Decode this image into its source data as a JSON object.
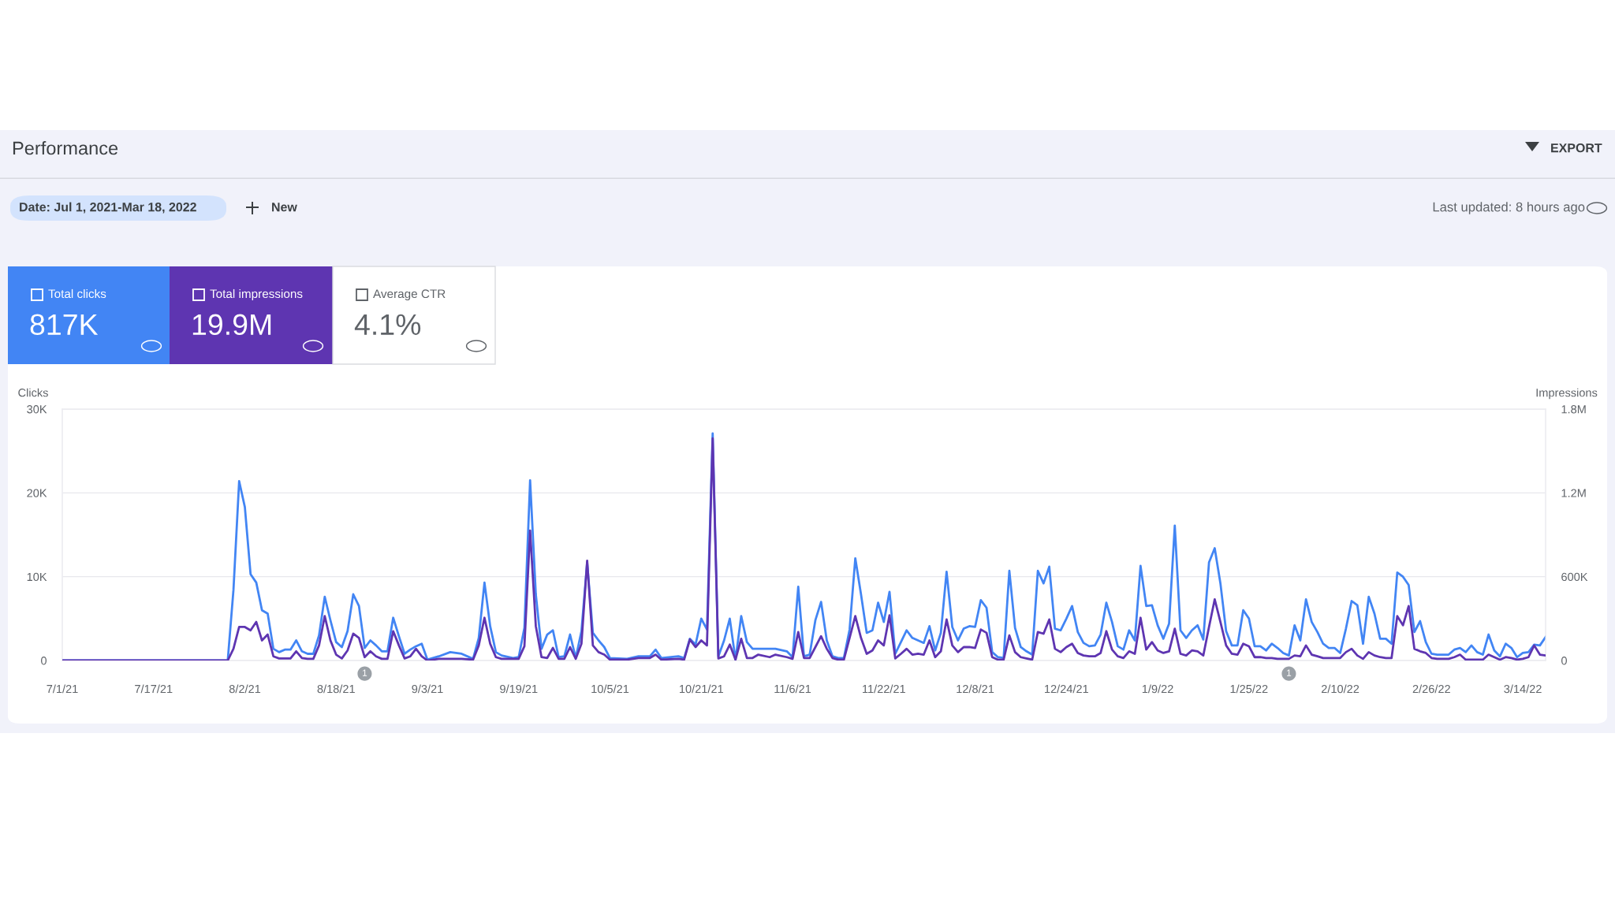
{
  "chart_data": {
    "type": "line",
    "title": "Performance",
    "ylabel": "Clicks",
    "y2label": "Impressions",
    "x": [
      "2021-07-01",
      "2021-07-15",
      "2021-07-30",
      "2021-07-31",
      "2021-08-01",
      "2021-08-02",
      "2021-08-03",
      "2021-08-04",
      "2021-08-05",
      "2021-08-06",
      "2021-08-07",
      "2021-08-08",
      "2021-08-09",
      "2021-08-10",
      "2021-08-11",
      "2021-08-12",
      "2021-08-13",
      "2021-08-14",
      "2021-08-15",
      "2021-08-16",
      "2021-08-17",
      "2021-08-18",
      "2021-08-19",
      "2021-08-20",
      "2021-08-21",
      "2021-08-22",
      "2021-08-23",
      "2021-08-24",
      "2021-08-25",
      "2021-08-26",
      "2021-08-27",
      "2021-08-28",
      "2021-08-29",
      "2021-08-30",
      "2021-08-31",
      "2021-09-01",
      "2021-09-02",
      "2021-09-03",
      "2021-09-05",
      "2021-09-07",
      "2021-09-09",
      "2021-09-11",
      "2021-09-12",
      "2021-09-13",
      "2021-09-14",
      "2021-09-15",
      "2021-09-16",
      "2021-09-18",
      "2021-09-19",
      "2021-09-20",
      "2021-09-21",
      "2021-09-22",
      "2021-09-23",
      "2021-09-24",
      "2021-09-25",
      "2021-09-26",
      "2021-09-27",
      "2021-09-28",
      "2021-09-29",
      "2021-09-30",
      "2021-10-01",
      "2021-10-02",
      "2021-10-03",
      "2021-10-04",
      "2021-10-05",
      "2021-10-08",
      "2021-10-10",
      "2021-10-12",
      "2021-10-13",
      "2021-10-14",
      "2021-10-17",
      "2021-10-18",
      "2021-10-19",
      "2021-10-20",
      "2021-10-21",
      "2021-10-22",
      "2021-10-23",
      "2021-10-24",
      "2021-10-25",
      "2021-10-26",
      "2021-10-27",
      "2021-10-28",
      "2021-10-29",
      "2021-10-30",
      "2021-10-31",
      "2021-11-02",
      "2021-11-03",
      "2021-11-05",
      "2021-11-06",
      "2021-11-07",
      "2021-11-08",
      "2021-11-09",
      "2021-11-10",
      "2021-11-11",
      "2021-11-12",
      "2021-11-13",
      "2021-11-14",
      "2021-11-15",
      "2021-11-16",
      "2021-11-17",
      "2021-11-18",
      "2021-11-19",
      "2021-11-20",
      "2021-11-21",
      "2021-11-22",
      "2021-11-23",
      "2021-11-24",
      "2021-11-25",
      "2021-11-26",
      "2021-11-27",
      "2021-11-28",
      "2021-11-29",
      "2021-11-30",
      "2021-12-01",
      "2021-12-02",
      "2021-12-03",
      "2021-12-04",
      "2021-12-05",
      "2021-12-06",
      "2021-12-07",
      "2021-12-08",
      "2021-12-09",
      "2021-12-10",
      "2021-12-11",
      "2021-12-12",
      "2021-12-13",
      "2021-12-14",
      "2021-12-15",
      "2021-12-16",
      "2021-12-17",
      "2021-12-18",
      "2021-12-19",
      "2021-12-20",
      "2021-12-21",
      "2021-12-22",
      "2021-12-23",
      "2021-12-24",
      "2021-12-25",
      "2021-12-26",
      "2021-12-27",
      "2021-12-28",
      "2021-12-29",
      "2021-12-30",
      "2021-12-31",
      "2022-01-01",
      "2022-01-02",
      "2022-01-03",
      "2022-01-04",
      "2022-01-05",
      "2022-01-06",
      "2022-01-07",
      "2022-01-08",
      "2022-01-09",
      "2022-01-10",
      "2022-01-11",
      "2022-01-12",
      "2022-01-13",
      "2022-01-14",
      "2022-01-15",
      "2022-01-16",
      "2022-01-17",
      "2022-01-18",
      "2022-01-19",
      "2022-01-20",
      "2022-01-21",
      "2022-01-22",
      "2022-01-23",
      "2022-01-24",
      "2022-01-25",
      "2022-01-26",
      "2022-01-27",
      "2022-01-28",
      "2022-01-29",
      "2022-01-30",
      "2022-01-31",
      "2022-02-01",
      "2022-02-02",
      "2022-02-03",
      "2022-02-04",
      "2022-02-05",
      "2022-02-06",
      "2022-02-07",
      "2022-02-08",
      "2022-02-09",
      "2022-02-10",
      "2022-02-11",
      "2022-02-12",
      "2022-02-13",
      "2022-02-14",
      "2022-02-15",
      "2022-02-16",
      "2022-02-17",
      "2022-02-18",
      "2022-02-19",
      "2022-02-20",
      "2022-02-21",
      "2022-02-22",
      "2022-02-23",
      "2022-02-24",
      "2022-02-25",
      "2022-02-26",
      "2022-02-27",
      "2022-02-28",
      "2022-03-01",
      "2022-03-02",
      "2022-03-03",
      "2022-03-04",
      "2022-03-05",
      "2022-03-06",
      "2022-03-07",
      "2022-03-08",
      "2022-03-09",
      "2022-03-10",
      "2022-03-11",
      "2022-03-12",
      "2022-03-13",
      "2022-03-14",
      "2022-03-15",
      "2022-03-16",
      "2022-03-17",
      "2022-03-18"
    ],
    "series": [
      {
        "color": "#5e35b1",
        "axis": "y2",
        "values": [
          0,
          0,
          0,
          84000,
          240000,
          240000,
          216000,
          276000,
          144000,
          186000,
          30000,
          15000,
          15000,
          15000,
          66000,
          18000,
          12000,
          12000,
          108000,
          318000,
          144000,
          42000,
          15000,
          72000,
          192000,
          162000,
          24000,
          66000,
          30000,
          12000,
          12000,
          210000,
          108000,
          15000,
          30000,
          84000,
          30000,
          0,
          12000,
          12000,
          12000,
          6000,
          108000,
          306000,
          120000,
          24000,
          12000,
          12000,
          12000,
          102000,
          930000,
          246000,
          24000,
          18000,
          90000,
          12000,
          12000,
          96000,
          12000,
          120000,
          714000,
          108000,
          60000,
          42000,
          6000,
          6000,
          18000,
          18000,
          42000,
          6000,
          12000,
          6000,
          150000,
          96000,
          144000,
          108000,
          1590000,
          15000,
          30000,
          114000,
          6000,
          156000,
          18000,
          18000,
          42000,
          24000,
          42000,
          24000,
          12000,
          204000,
          18000,
          18000,
          96000,
          174000,
          84000,
          18000,
          6000,
          6000,
          162000,
          318000,
          162000,
          48000,
          72000,
          144000,
          108000,
          324000,
          15000,
          48000,
          84000,
          42000,
          48000,
          42000,
          144000,
          24000,
          66000,
          294000,
          108000,
          60000,
          96000,
          96000,
          90000,
          222000,
          198000,
          24000,
          6000,
          6000,
          180000,
          60000,
          24000,
          15000,
          6000,
          204000,
          192000,
          294000,
          84000,
          60000,
          96000,
          120000,
          54000,
          36000,
          30000,
          30000,
          54000,
          210000,
          78000,
          30000,
          18000,
          66000,
          48000,
          306000,
          78000,
          132000,
          72000,
          54000,
          66000,
          228000,
          48000,
          36000,
          72000,
          66000,
          36000,
          240000,
          438000,
          276000,
          108000,
          48000,
          42000,
          120000,
          102000,
          24000,
          24000,
          18000,
          18000,
          12000,
          12000,
          12000,
          36000,
          30000,
          108000,
          42000,
          30000,
          18000,
          18000,
          18000,
          18000,
          60000,
          84000,
          36000,
          12000,
          60000,
          36000,
          24000,
          18000,
          18000,
          318000,
          252000,
          390000,
          84000,
          66000,
          54000,
          18000,
          12000,
          12000,
          12000,
          24000,
          42000,
          6000,
          6000,
          6000,
          6000,
          42000,
          24000,
          6000,
          24000,
          18000,
          6000,
          12000,
          24000,
          108000,
          42000,
          36000
        ]
      },
      {
        "color": "#4285f4",
        "axis": "y",
        "values": [
          0,
          0,
          0,
          8400,
          21400,
          18300,
          10300,
          9300,
          6000,
          5600,
          1400,
          1000,
          1300,
          1300,
          2400,
          1100,
          800,
          800,
          3000,
          7600,
          4800,
          2200,
          1600,
          3500,
          7900,
          6500,
          1500,
          2400,
          1800,
          1100,
          1100,
          5100,
          2900,
          800,
          1300,
          1700,
          2000,
          100,
          500,
          1000,
          800,
          200,
          2700,
          9300,
          4100,
          1000,
          600,
          300,
          400,
          3900,
          21500,
          7900,
          1400,
          3100,
          3600,
          400,
          500,
          3100,
          300,
          3500,
          11700,
          3300,
          2400,
          1600,
          300,
          200,
          500,
          500,
          1300,
          300,
          500,
          300,
          2600,
          1900,
          5000,
          3700,
          27100,
          500,
          2400,
          5000,
          100,
          5300,
          2200,
          1400,
          1400,
          1400,
          1400,
          1100,
          400,
          8800,
          500,
          700,
          4800,
          7000,
          2400,
          500,
          300,
          300,
          3700,
          12200,
          7900,
          3300,
          3600,
          6900,
          4600,
          8200,
          800,
          2200,
          3600,
          2700,
          2400,
          2100,
          4100,
          1200,
          3300,
          10600,
          4000,
          2400,
          3800,
          4100,
          4000,
          7200,
          6300,
          1000,
          400,
          300,
          10700,
          3900,
          1600,
          1100,
          700,
          10700,
          9200,
          11200,
          3800,
          3600,
          5000,
          6500,
          3400,
          2100,
          1700,
          1800,
          3100,
          6900,
          4600,
          1700,
          1300,
          3600,
          2400,
          11300,
          6500,
          6600,
          4200,
          2600,
          4400,
          16100,
          3600,
          2700,
          3600,
          4200,
          2500,
          11700,
          13400,
          9200,
          3500,
          1800,
          1800,
          6000,
          5000,
          1700,
          1700,
          1200,
          2000,
          1500,
          900,
          600,
          4200,
          2400,
          7300,
          4600,
          3400,
          2000,
          1500,
          1500,
          900,
          3800,
          7100,
          6600,
          2000,
          7600,
          5600,
          2600,
          2600,
          2000,
          10500,
          10000,
          9000,
          3400,
          4700,
          2200,
          800,
          700,
          700,
          700,
          1300,
          1500,
          1000,
          1800,
          1000,
          700,
          3100,
          1200,
          500,
          2000,
          1500,
          400,
          900,
          1000,
          1900,
          1800,
          2800
        ]
      }
    ],
    "xlim": [
      "2021-07-01",
      "2022-03-18"
    ],
    "xticks": [
      {
        "value": "2021-07-01",
        "label": "7/1/21"
      },
      {
        "value": "2021-07-17",
        "label": "7/17/21"
      },
      {
        "value": "2021-08-02",
        "label": "8/2/21"
      },
      {
        "value": "2021-08-18",
        "label": "8/18/21"
      },
      {
        "value": "2021-09-03",
        "label": "9/3/21"
      },
      {
        "value": "2021-09-19",
        "label": "9/19/21"
      },
      {
        "value": "2021-10-05",
        "label": "10/5/21"
      },
      {
        "value": "2021-10-21",
        "label": "10/21/21"
      },
      {
        "value": "2021-11-06",
        "label": "11/6/21"
      },
      {
        "value": "2021-11-22",
        "label": "11/22/21"
      },
      {
        "value": "2021-12-08",
        "label": "12/8/21"
      },
      {
        "value": "2021-12-24",
        "label": "12/24/21"
      },
      {
        "value": "2022-01-09",
        "label": "1/9/22"
      },
      {
        "value": "2022-01-25",
        "label": "1/25/22"
      },
      {
        "value": "2022-02-10",
        "label": "2/10/22"
      },
      {
        "value": "2022-02-26",
        "label": "2/26/22"
      },
      {
        "value": "2022-03-14",
        "label": "3/14/22"
      }
    ],
    "ylim": [
      0,
      30000
    ],
    "yticks": [
      0,
      {
        "value": 10000,
        "label": "10K"
      },
      {
        "value": 20000,
        "label": "20K"
      },
      {
        "value": 30000,
        "label": "30K"
      }
    ],
    "y2lim": [
      0,
      1800000
    ],
    "y2ticks": [
      0,
      {
        "value": 600000,
        "label": "600K"
      },
      {
        "value": 1200000,
        "label": "1.2M"
      },
      {
        "value": 1800000,
        "label": "1.8M"
      }
    ],
    "grid": "y",
    "annotations": [
      "Date: Jul 1, 2021-Mar 18, 2022",
      "New",
      "EXPORT",
      "Last updated: 8 hours ago",
      "Total clicks",
      "817K",
      "Total impressions",
      "19.9M",
      "Average CTR",
      "4.1%",
      {
        "text": "1",
        "x": "2021-08-23",
        "y": 0
      },
      {
        "text": "1",
        "x": "2022-02-01",
        "y": 0
      }
    ]
  }
}
